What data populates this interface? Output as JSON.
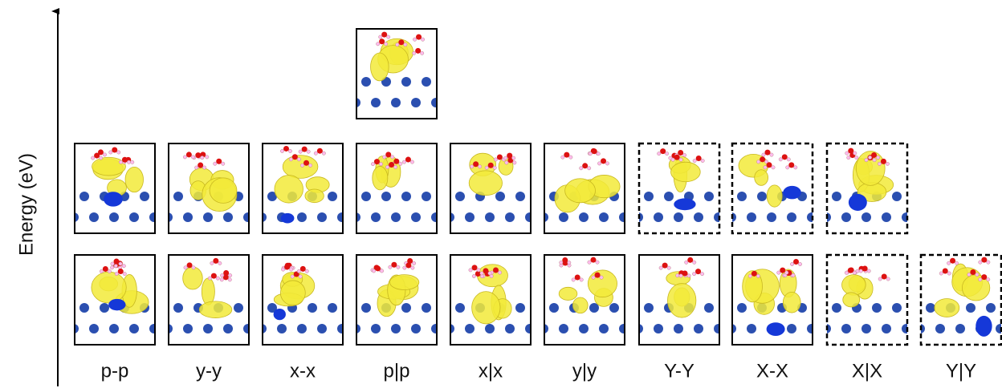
{
  "axis_label": "Energy (eV)",
  "columns": [
    "p-p",
    "y-y",
    "x-x",
    "p|p",
    "x|x",
    "y|y",
    "Y-Y",
    "X-X",
    "X|X",
    "Y|Y"
  ]
}
